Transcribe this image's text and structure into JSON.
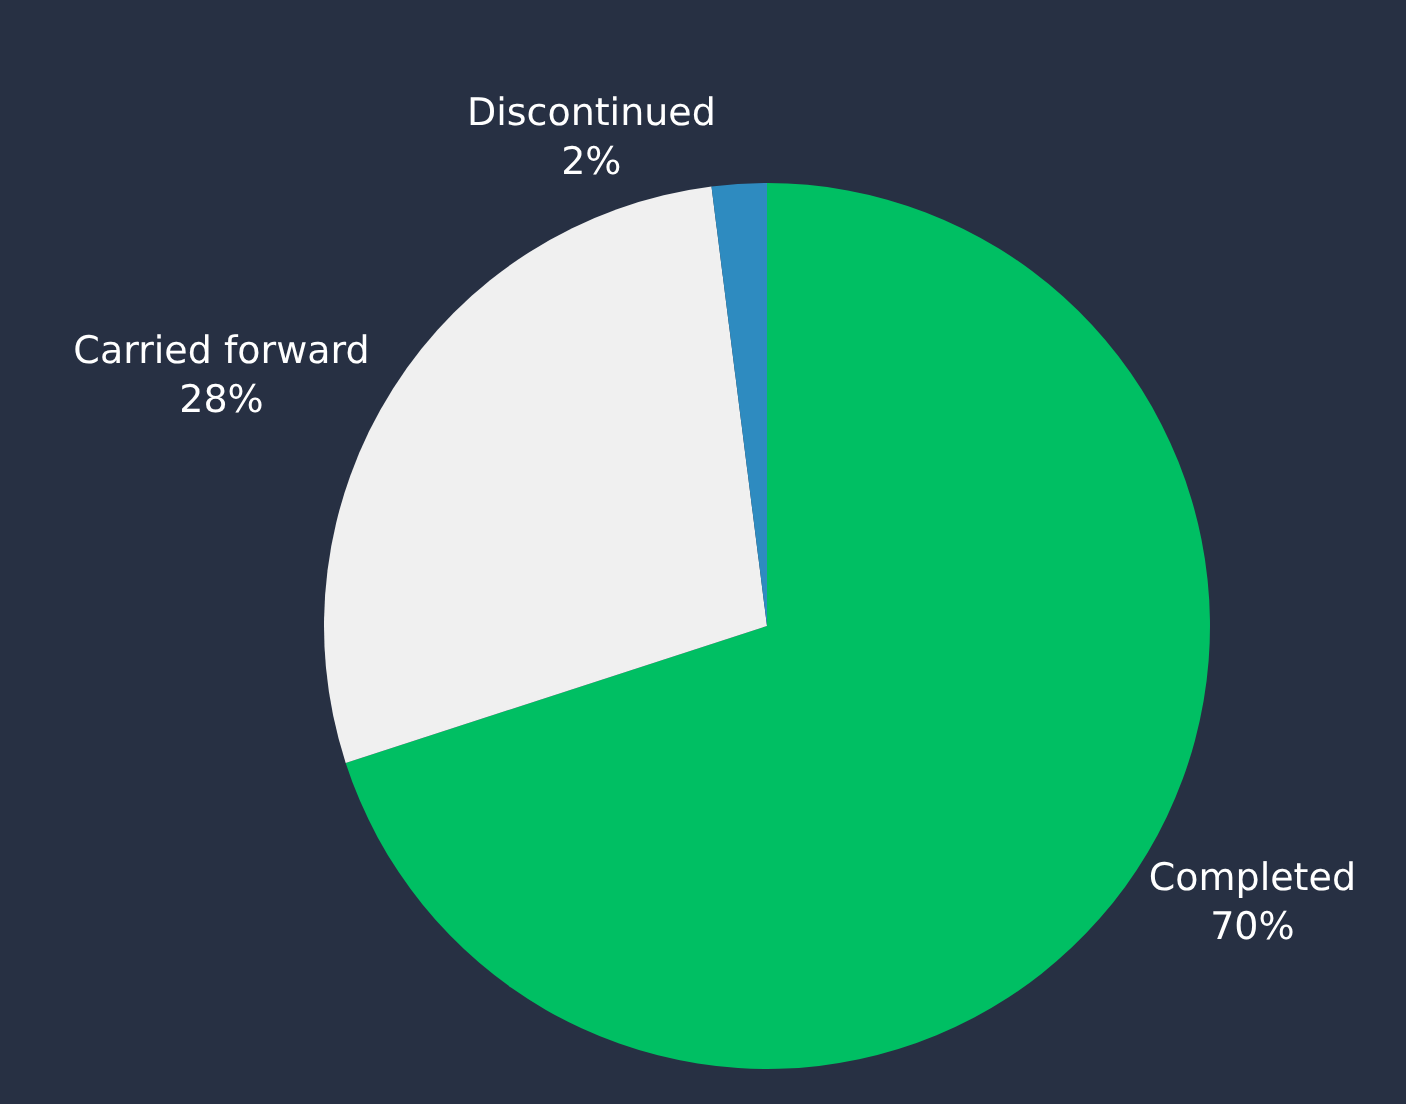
{
  "chart_data": {
    "type": "pie",
    "categories": [
      "Completed",
      "Carried forward",
      "Discontinued"
    ],
    "values": [
      70,
      28,
      2
    ],
    "value_labels": [
      "70%",
      "28%",
      "2%"
    ],
    "colors": [
      "#00bf63",
      "#f0f0f0",
      "#2e8bc0"
    ],
    "legend": false
  }
}
